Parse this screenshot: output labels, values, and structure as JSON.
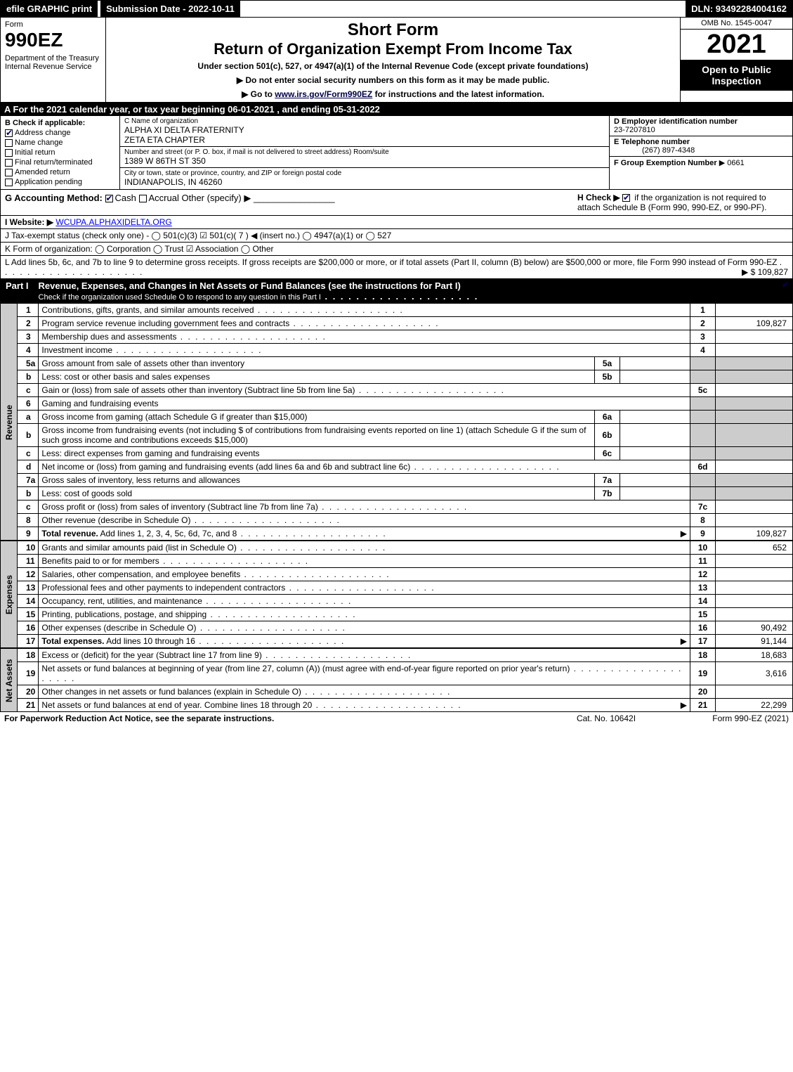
{
  "topbar": {
    "efile": "efile GRAPHIC print",
    "submission": "Submission Date - 2022-10-11",
    "dln": "DLN: 93492284004162"
  },
  "header": {
    "form_label": "Form",
    "form_no": "990EZ",
    "dept": "Department of the Treasury\nInternal Revenue Service",
    "short": "Short Form",
    "title": "Return of Organization Exempt From Income Tax",
    "sub": "Under section 501(c), 527, or 4947(a)(1) of the Internal Revenue Code (except private foundations)",
    "instr1": "▶ Do not enter social security numbers on this form as it may be made public.",
    "instr2_prefix": "▶ Go to ",
    "instr2_link": "www.irs.gov/Form990EZ",
    "instr2_suffix": " for instructions and the latest information.",
    "omb": "OMB No. 1545-0047",
    "year": "2021",
    "open": "Open to Public Inspection"
  },
  "lineA": "A  For the 2021 calendar year, or tax year beginning 06-01-2021 , and ending 05-31-2022",
  "colB": {
    "hdr": "B  Check if applicable:",
    "items": [
      {
        "label": "Address change",
        "checked": true
      },
      {
        "label": "Name change",
        "checked": false
      },
      {
        "label": "Initial return",
        "checked": false
      },
      {
        "label": "Final return/terminated",
        "checked": false
      },
      {
        "label": "Amended return",
        "checked": false
      },
      {
        "label": "Application pending",
        "checked": false
      }
    ]
  },
  "colC": {
    "name_label": "C Name of organization",
    "name": "ALPHA XI DELTA FRATERNITY\nZETA ETA CHAPTER",
    "addr_label": "Number and street (or P. O. box, if mail is not delivered to street address)      Room/suite",
    "addr": "1389 W 86TH ST 350",
    "city_label": "City or town, state or province, country, and ZIP or foreign postal code",
    "city": "INDIANAPOLIS, IN  46260"
  },
  "colDE": {
    "d_label": "D Employer identification number",
    "ein": "23-7207810",
    "e_label": "E Telephone number",
    "phone": "(267) 897-4348",
    "f_label": "F Group Exemption Number",
    "f_arrow": "▶ 0661"
  },
  "blockG": {
    "left": "G Accounting Method:",
    "cash": "Cash",
    "accrual": "Accrual",
    "other": "Other (specify) ▶",
    "h_label": "H  Check ▶",
    "h_text": "if the organization is not required to attach Schedule B (Form 990, 990-EZ, or 990-PF)."
  },
  "blockI": {
    "label": "I Website: ▶",
    "url": "WCUPA.ALPHAXIDELTA.ORG"
  },
  "blockJ": "J Tax-exempt status (check only one) - ◯ 501(c)(3)  ☑ 501(c)( 7 ) ◀ (insert no.)  ◯ 4947(a)(1) or  ◯ 527",
  "blockK": "K Form of organization:  ◯ Corporation  ◯ Trust  ☑ Association  ◯ Other",
  "blockL": {
    "text": "L Add lines 5b, 6c, and 7b to line 9 to determine gross receipts. If gross receipts are $200,000 or more, or if total assets (Part II, column (B) below) are $500,000 or more, file Form 990 instead of Form 990-EZ",
    "amt": "▶ $ 109,827"
  },
  "part1": {
    "label": "Part I",
    "title": "Revenue, Expenses, and Changes in Net Assets or Fund Balances (see the instructions for Part I)",
    "sub": "Check if the organization used Schedule O to respond to any question in this Part I",
    "check": true
  },
  "sections": {
    "revenue": "Revenue",
    "expenses": "Expenses",
    "netassets": "Net Assets"
  },
  "rows": [
    {
      "n": "1",
      "d": "Contributions, gifts, grants, and similar amounts received",
      "r": "1",
      "v": ""
    },
    {
      "n": "2",
      "d": "Program service revenue including government fees and contracts",
      "r": "2",
      "v": "109,827"
    },
    {
      "n": "3",
      "d": "Membership dues and assessments",
      "r": "3",
      "v": ""
    },
    {
      "n": "4",
      "d": "Investment income",
      "r": "4",
      "v": ""
    },
    {
      "n": "5a",
      "d": "Gross amount from sale of assets other than inventory",
      "sn": "5a",
      "sv": "",
      "shade": true
    },
    {
      "n": "b",
      "d": "Less: cost or other basis and sales expenses",
      "sn": "5b",
      "sv": "",
      "shade": true
    },
    {
      "n": "c",
      "d": "Gain or (loss) from sale of assets other than inventory (Subtract line 5b from line 5a)",
      "r": "5c",
      "v": ""
    },
    {
      "n": "6",
      "d": "Gaming and fundraising events",
      "shade_full": true
    },
    {
      "n": "a",
      "d": "Gross income from gaming (attach Schedule G if greater than $15,000)",
      "sn": "6a",
      "sv": "",
      "shade": true
    },
    {
      "n": "b",
      "d": "Gross income from fundraising events (not including $                      of contributions from fundraising events reported on line 1) (attach Schedule G if the sum of such gross income and contributions exceeds $15,000)",
      "sn": "6b",
      "sv": "",
      "shade": true
    },
    {
      "n": "c",
      "d": "Less: direct expenses from gaming and fundraising events",
      "sn": "6c",
      "sv": "",
      "shade": true
    },
    {
      "n": "d",
      "d": "Net income or (loss) from gaming and fundraising events (add lines 6a and 6b and subtract line 6c)",
      "r": "6d",
      "v": ""
    },
    {
      "n": "7a",
      "d": "Gross sales of inventory, less returns and allowances",
      "sn": "7a",
      "sv": "",
      "shade": true
    },
    {
      "n": "b",
      "d": "Less: cost of goods sold",
      "sn": "7b",
      "sv": "",
      "shade": true
    },
    {
      "n": "c",
      "d": "Gross profit or (loss) from sales of inventory (Subtract line 7b from line 7a)",
      "r": "7c",
      "v": ""
    },
    {
      "n": "8",
      "d": "Other revenue (describe in Schedule O)",
      "r": "8",
      "v": ""
    },
    {
      "n": "9",
      "d": "Total revenue. Add lines 1, 2, 3, 4, 5c, 6d, 7c, and 8",
      "r": "9",
      "v": "109,827",
      "bold": true,
      "arrow": true
    }
  ],
  "exp_rows": [
    {
      "n": "10",
      "d": "Grants and similar amounts paid (list in Schedule O)",
      "r": "10",
      "v": "652"
    },
    {
      "n": "11",
      "d": "Benefits paid to or for members",
      "r": "11",
      "v": ""
    },
    {
      "n": "12",
      "d": "Salaries, other compensation, and employee benefits",
      "r": "12",
      "v": ""
    },
    {
      "n": "13",
      "d": "Professional fees and other payments to independent contractors",
      "r": "13",
      "v": ""
    },
    {
      "n": "14",
      "d": "Occupancy, rent, utilities, and maintenance",
      "r": "14",
      "v": ""
    },
    {
      "n": "15",
      "d": "Printing, publications, postage, and shipping",
      "r": "15",
      "v": ""
    },
    {
      "n": "16",
      "d": "Other expenses (describe in Schedule O)",
      "r": "16",
      "v": "90,492"
    },
    {
      "n": "17",
      "d": "Total expenses. Add lines 10 through 16",
      "r": "17",
      "v": "91,144",
      "bold": true,
      "arrow": true
    }
  ],
  "na_rows": [
    {
      "n": "18",
      "d": "Excess or (deficit) for the year (Subtract line 17 from line 9)",
      "r": "18",
      "v": "18,683"
    },
    {
      "n": "19",
      "d": "Net assets or fund balances at beginning of year (from line 27, column (A)) (must agree with end-of-year figure reported on prior year's return)",
      "r": "19",
      "v": "3,616"
    },
    {
      "n": "20",
      "d": "Other changes in net assets or fund balances (explain in Schedule O)",
      "r": "20",
      "v": ""
    },
    {
      "n": "21",
      "d": "Net assets or fund balances at end of year. Combine lines 18 through 20",
      "r": "21",
      "v": "22,299",
      "arrow": true
    }
  ],
  "footer": {
    "l": "For Paperwork Reduction Act Notice, see the separate instructions.",
    "c": "Cat. No. 10642I",
    "r": "Form 990-EZ (2021)"
  }
}
